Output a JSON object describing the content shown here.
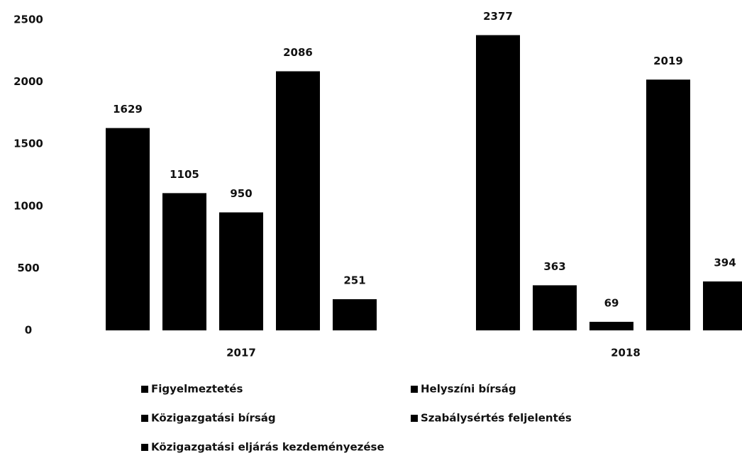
{
  "chart_data": {
    "type": "bar",
    "categories": [
      "2017",
      "2018"
    ],
    "series": [
      {
        "name": "Figyelmeztetés",
        "color": "#000000",
        "values": [
          1629,
          2377
        ]
      },
      {
        "name": "Helyszíni bírság",
        "color": "#000000",
        "values": [
          1105,
          363
        ]
      },
      {
        "name": "Közigazgatási bírság",
        "color": "#000000",
        "values": [
          950,
          69
        ]
      },
      {
        "name": "Szabálysértés feljelentés",
        "color": "#000000",
        "values": [
          2086,
          2019
        ]
      },
      {
        "name": "Közigazgatási eljárás kezdeményezése",
        "color": "#000000",
        "values": [
          251,
          394
        ]
      }
    ],
    "ylim": [
      0,
      2500
    ],
    "yticks": [
      0,
      500,
      1000,
      1500,
      2000,
      2500
    ],
    "grid": false,
    "legend": "bottom"
  }
}
